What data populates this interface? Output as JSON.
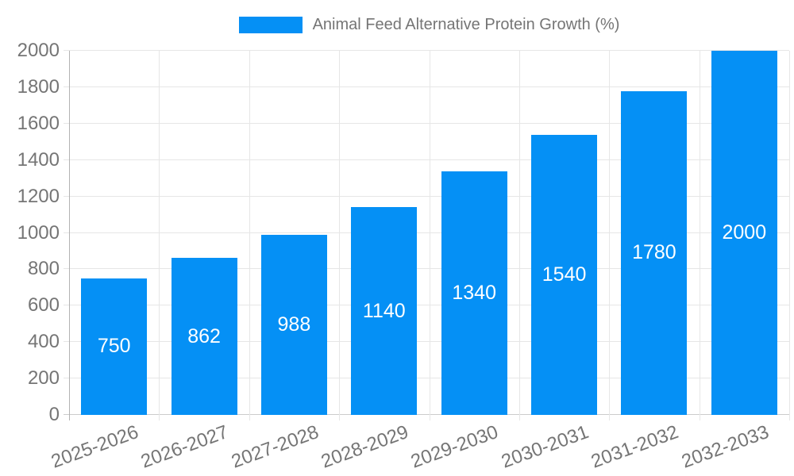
{
  "legend": {
    "label": "Animal Feed Alternative Protein Growth (%)",
    "swatch_color": "#0590F5"
  },
  "chart_data": {
    "type": "bar",
    "title": "Animal Feed Alternative Protein Growth (%)",
    "legend_position": "top",
    "categories": [
      "2025-2026",
      "2026-2027",
      "2027-2028",
      "2028-2029",
      "2029-2030",
      "2030-2031",
      "2031-2032",
      "2032-2033"
    ],
    "values": [
      750,
      862,
      988,
      1140,
      1340,
      1540,
      1780,
      2000
    ],
    "xlabel": "",
    "ylabel": "",
    "ylim": [
      0,
      2000
    ],
    "ytick_step": 200,
    "ytick_labels": [
      "0",
      "200",
      "400",
      "600",
      "800",
      "1000",
      "1200",
      "1400",
      "1600",
      "1800",
      "2000"
    ],
    "grid": true,
    "bar_color": "#0590F5",
    "value_label_color": "#FFFFFF",
    "axis_text_color": "#757575",
    "gridline_color": "#E6E6E6",
    "y_axis_line_color": "#B3B3B3",
    "x_axis_line_color": "#CCCCCC"
  }
}
